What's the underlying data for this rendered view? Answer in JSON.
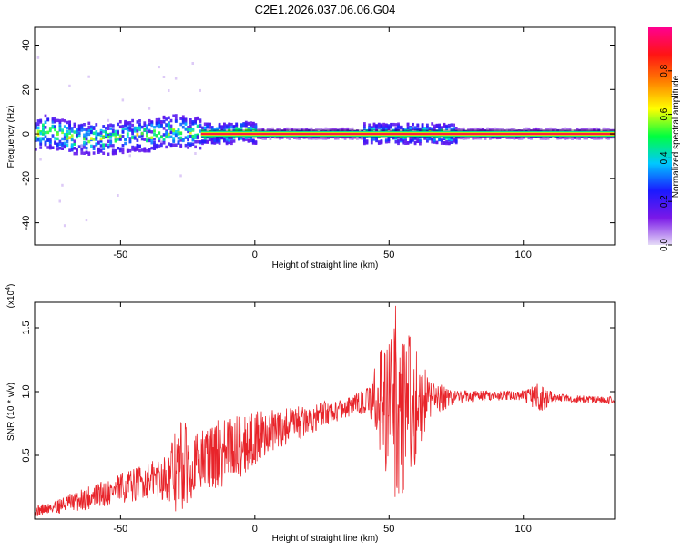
{
  "title": "C2E1.2026.037.06.06.G04",
  "chart_data": [
    {
      "type": "heatmap",
      "xlabel": "Height of straight line (km)",
      "ylabel": "Frequency (Hz)",
      "xlim": [
        -82,
        134
      ],
      "ylim": [
        -50,
        48
      ],
      "x_ticks": [
        -50,
        0,
        50,
        100
      ],
      "x_tick_labels": [
        "-50",
        "0",
        "50",
        "100"
      ],
      "y_ticks": [
        -40,
        -20,
        0,
        20,
        40
      ],
      "y_tick_labels": [
        "-40",
        "-20",
        "0",
        "20",
        "40"
      ],
      "colorbar": {
        "label": "Normalized spectral amplitude",
        "range": [
          0,
          1
        ],
        "ticks": [
          0.0,
          0.2,
          0.4,
          0.6,
          0.8
        ],
        "tick_labels": [
          "0.0",
          "0.2",
          "0.4",
          "0.6",
          "0.8"
        ],
        "colors": [
          "#e6dcf7",
          "#7a18e8",
          "#1a1aff",
          "#00c8ff",
          "#00ff40",
          "#ffff00",
          "#ff8000",
          "#ff1414",
          "#ff0090"
        ]
      },
      "ridge": [
        {
          "x": -80,
          "y": 1.5
        },
        {
          "x": -75,
          "y": 0.0
        },
        {
          "x": -70,
          "y": -1.5
        },
        {
          "x": -65,
          "y": -2.5
        },
        {
          "x": -60,
          "y": -2.0
        },
        {
          "x": -55,
          "y": -2.5
        },
        {
          "x": -50,
          "y": -1.5
        },
        {
          "x": -45,
          "y": -0.5
        },
        {
          "x": -40,
          "y": -1.0
        },
        {
          "x": -35,
          "y": 0.5
        },
        {
          "x": -30,
          "y": 1.5
        },
        {
          "x": -25,
          "y": 0.5
        },
        {
          "x": -20,
          "y": 0.0
        },
        {
          "x": -15,
          "y": 0.0
        },
        {
          "x": -10,
          "y": 0.0
        },
        {
          "x": -5,
          "y": 1.0
        },
        {
          "x": 0,
          "y": 0.0
        },
        {
          "x": 134,
          "y": 0.0
        }
      ]
    },
    {
      "type": "line",
      "xlabel": "Height of straight line (km)",
      "ylabel": "SNR (10 * v/v)",
      "y_multiplier": "(x10",
      "y_multiplier_exp": "4",
      "y_multiplier_close": ")",
      "xlim": [
        -82,
        134
      ],
      "ylim": [
        0,
        1.7
      ],
      "x_ticks": [
        -50,
        0,
        50,
        100
      ],
      "x_tick_labels": [
        "-50",
        "0",
        "50",
        "100"
      ],
      "y_ticks": [
        0.5,
        1.0,
        1.5
      ],
      "y_tick_labels": [
        "0.5",
        "1.0",
        "1.5"
      ],
      "series": [
        {
          "color": "#e8242a",
          "envelope": [
            {
              "x": -82,
              "mean": 0.06,
              "amp": 0.04
            },
            {
              "x": -70,
              "mean": 0.12,
              "amp": 0.07
            },
            {
              "x": -60,
              "mean": 0.18,
              "amp": 0.1
            },
            {
              "x": -50,
              "mean": 0.24,
              "amp": 0.12
            },
            {
              "x": -40,
              "mean": 0.3,
              "amp": 0.14
            },
            {
              "x": -32,
              "mean": 0.34,
              "amp": 0.2
            },
            {
              "x": -28,
              "mean": 0.4,
              "amp": 0.42
            },
            {
              "x": -22,
              "mean": 0.45,
              "amp": 0.22
            },
            {
              "x": -15,
              "mean": 0.5,
              "amp": 0.28
            },
            {
              "x": -5,
              "mean": 0.58,
              "amp": 0.25
            },
            {
              "x": 5,
              "mean": 0.68,
              "amp": 0.18
            },
            {
              "x": 15,
              "mean": 0.74,
              "amp": 0.14
            },
            {
              "x": 25,
              "mean": 0.82,
              "amp": 0.1
            },
            {
              "x": 35,
              "mean": 0.88,
              "amp": 0.08
            },
            {
              "x": 42,
              "mean": 0.93,
              "amp": 0.1
            },
            {
              "x": 46,
              "mean": 0.94,
              "amp": 0.35
            },
            {
              "x": 52,
              "mean": 0.9,
              "amp": 0.8
            },
            {
              "x": 58,
              "mean": 0.88,
              "amp": 0.6
            },
            {
              "x": 65,
              "mean": 0.94,
              "amp": 0.15
            },
            {
              "x": 75,
              "mean": 0.96,
              "amp": 0.05
            },
            {
              "x": 90,
              "mean": 0.97,
              "amp": 0.04
            },
            {
              "x": 100,
              "mean": 0.97,
              "amp": 0.04
            },
            {
              "x": 106,
              "mean": 0.95,
              "amp": 0.12
            },
            {
              "x": 112,
              "mean": 0.95,
              "amp": 0.03
            },
            {
              "x": 134,
              "mean": 0.93,
              "amp": 0.03
            }
          ]
        }
      ]
    }
  ]
}
